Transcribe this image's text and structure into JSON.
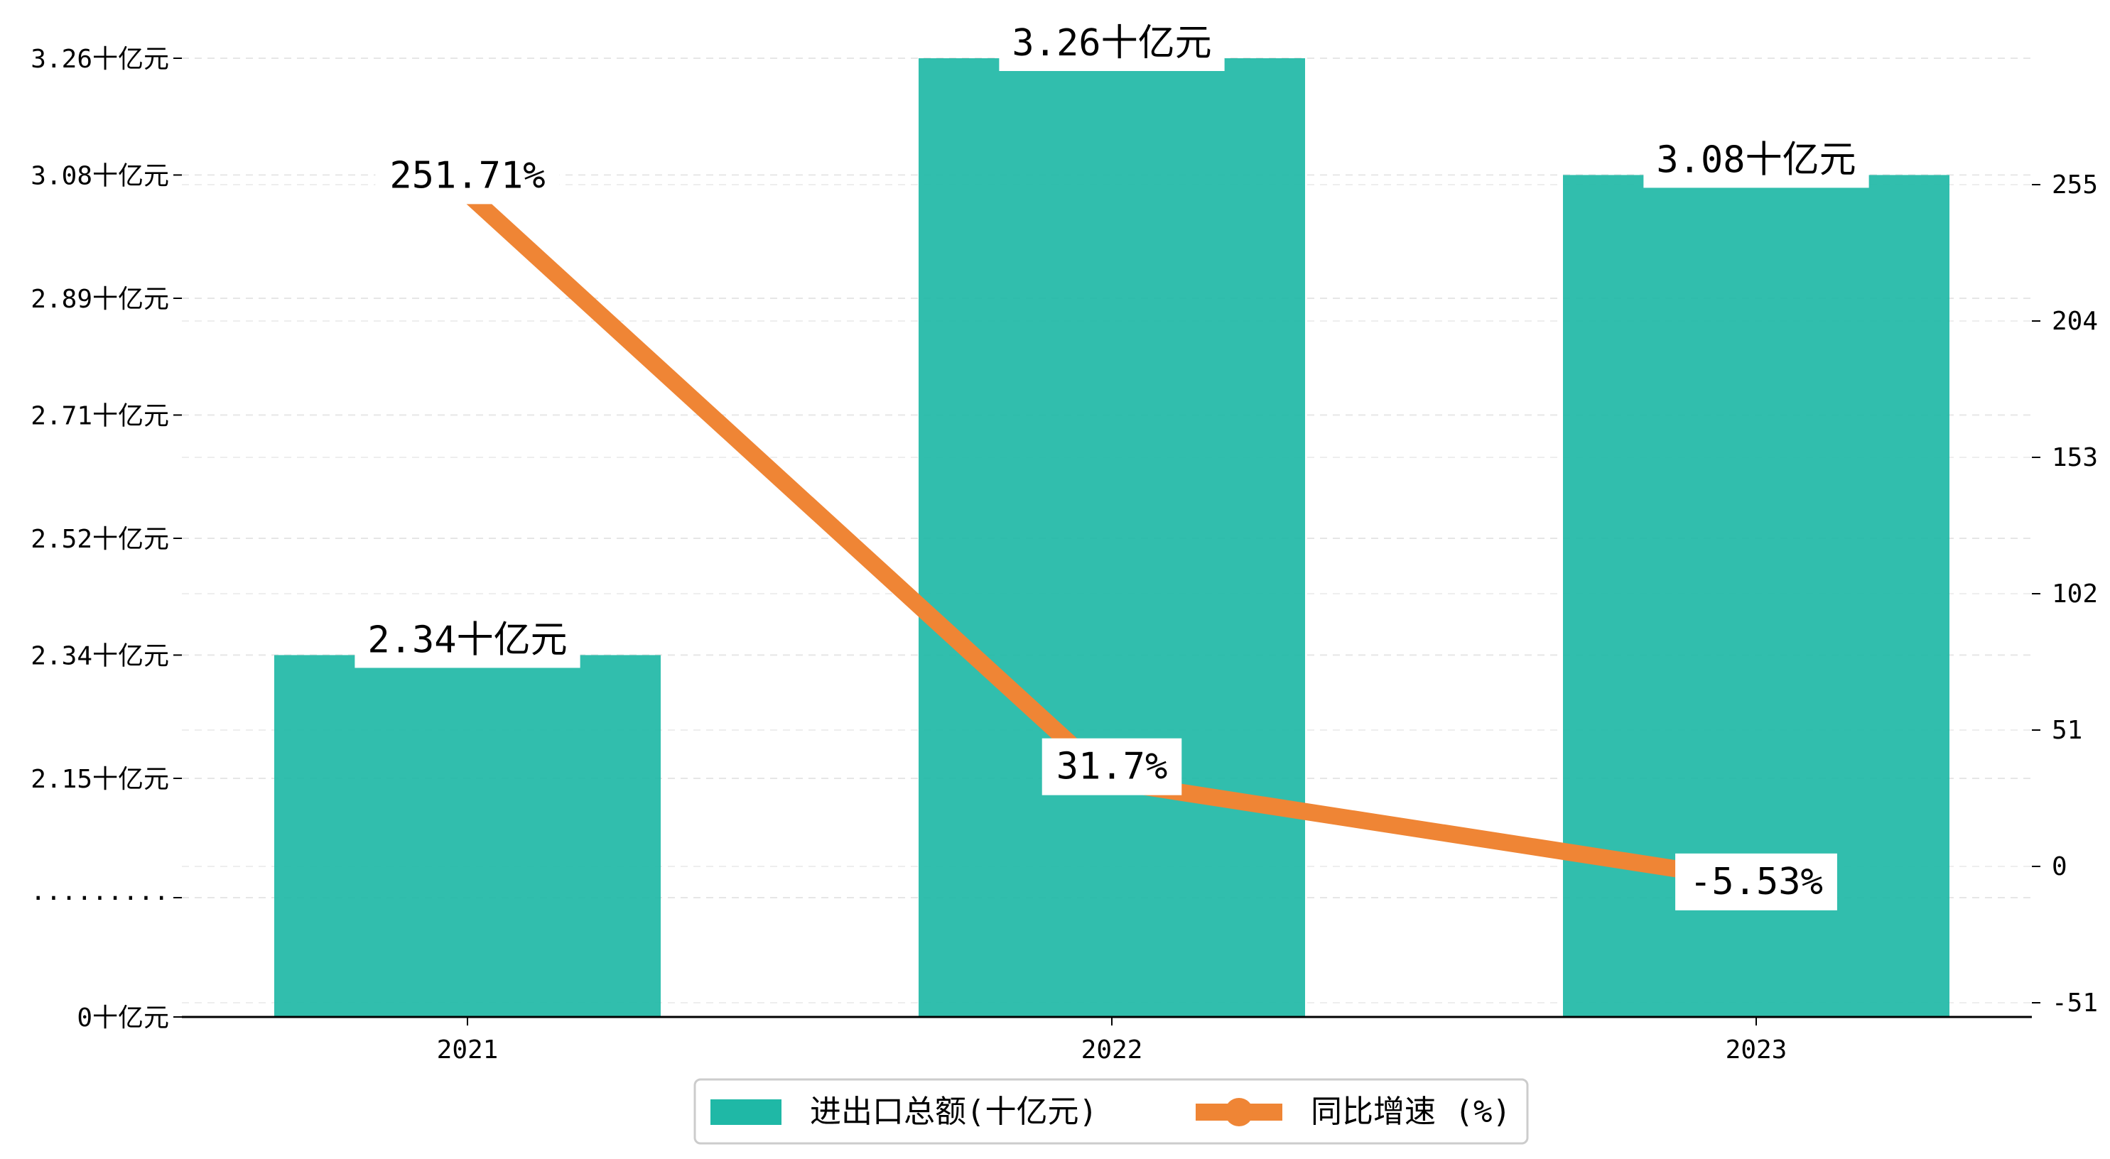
{
  "chart_data": {
    "type": "bar+line",
    "categories": [
      "2021",
      "2022",
      "2023"
    ],
    "series": [
      {
        "name": "进出口总额(十亿元)",
        "type": "bar",
        "axis": "left",
        "values": [
          2.34,
          3.26,
          3.08
        ],
        "labels": [
          "2.34十亿元",
          "3.26十亿元",
          "3.08十亿元"
        ],
        "color": "#1fb8a6"
      },
      {
        "name": "同比增速 (%)",
        "type": "line",
        "axis": "right",
        "values": [
          251.71,
          31.7,
          -5.53
        ],
        "labels": [
          "251.71%",
          "31.7%",
          "-5.53%"
        ],
        "color": "#ef8535"
      }
    ],
    "left_axis": {
      "ticks": [
        {
          "value": 0,
          "label": "0十亿元"
        },
        {
          "value": 0.84,
          "label": "·········"
        },
        {
          "value": 2.15,
          "label": "2.15十亿元"
        },
        {
          "value": 2.34,
          "label": "2.34十亿元"
        },
        {
          "value": 2.52,
          "label": "2.52十亿元"
        },
        {
          "value": 2.71,
          "label": "2.71十亿元"
        },
        {
          "value": 2.89,
          "label": "2.89十亿元"
        },
        {
          "value": 3.08,
          "label": "3.08十亿元"
        },
        {
          "value": 3.26,
          "label": "3.26十亿元"
        }
      ],
      "axis_break": {
        "from": 0.84,
        "to": 1.96
      },
      "range": [
        0,
        3.26
      ]
    },
    "right_axis": {
      "ticks": [
        -51,
        0,
        51,
        102,
        153,
        204,
        255
      ],
      "range": [
        -56.7,
        302
      ]
    },
    "grid": "horizontal dashed",
    "legend_position": "bottom-center"
  }
}
